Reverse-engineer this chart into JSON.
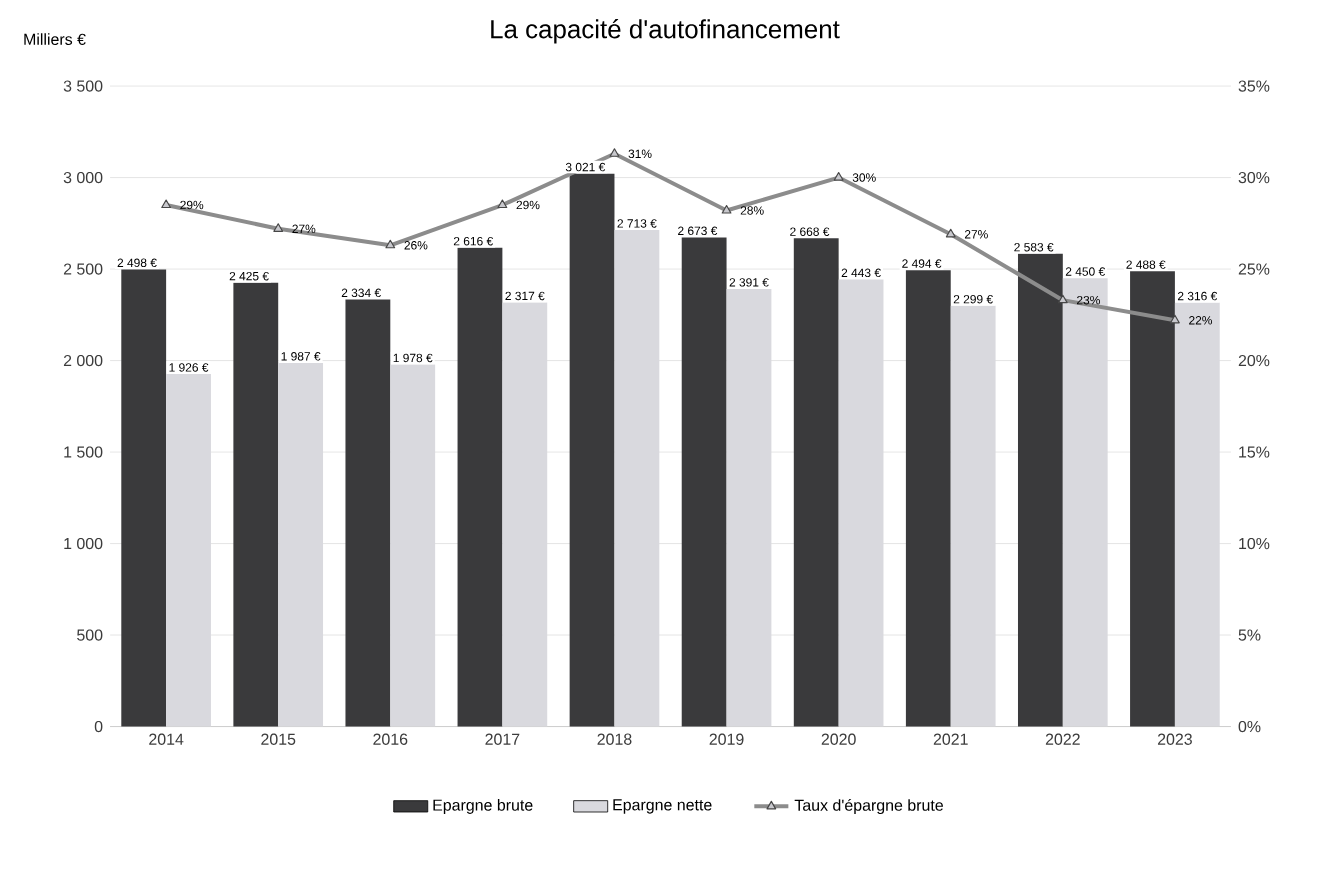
{
  "chart_data": {
    "type": "bar",
    "title": "La capacité d'autofinancement",
    "ylabel": "Milliers €",
    "categories": [
      "2014",
      "2015",
      "2016",
      "2017",
      "2018",
      "2019",
      "2020",
      "2021",
      "2022",
      "2023"
    ],
    "series": [
      {
        "name": "Epargne brute",
        "color": "#3a3a3c",
        "values": [
          2498,
          2425,
          2334,
          2616,
          3021,
          2673,
          2668,
          2494,
          2583,
          2488
        ],
        "value_labels": [
          "2 498 €",
          "2 425 €",
          "2 334 €",
          "2 616 €",
          "3 021 €",
          "2 673 €",
          "2 668 €",
          "2 494 €",
          "2 583 €",
          "2 488 €"
        ]
      },
      {
        "name": "Epargne nette",
        "color": "#d9d9de",
        "values": [
          1926,
          1987,
          1978,
          2317,
          2713,
          2391,
          2443,
          2299,
          2450,
          2316
        ],
        "value_labels": [
          "1 926 €",
          "1 987 €",
          "1 978 €",
          "2 317 €",
          "2 713 €",
          "2 391 €",
          "2 443 €",
          "2 299 €",
          "2 450 €",
          "2 316 €"
        ]
      },
      {
        "name": "Taux d'épargne brute",
        "type": "line",
        "axis": "y2",
        "marker": "triangle",
        "color": "#8c8c8c",
        "values": [
          28.5,
          27.2,
          26.3,
          28.5,
          31.3,
          28.2,
          30.0,
          26.9,
          23.3,
          22.2
        ],
        "value_labels": [
          "29%",
          "27%",
          "26%",
          "29%",
          "31%",
          "28%",
          "30%",
          "27%",
          "23%",
          "22%"
        ]
      }
    ],
    "ylim": [
      0,
      3500
    ],
    "yticks": [
      0,
      500,
      {
        "value": 1000,
        "label": "1 000"
      },
      {
        "value": 1500,
        "label": "1 500"
      },
      {
        "value": 2000,
        "label": "2 000"
      },
      {
        "value": 2500,
        "label": "2 500"
      },
      {
        "value": 3000,
        "label": "3 000"
      },
      {
        "value": 3500,
        "label": "3 500"
      }
    ],
    "y2lim": [
      0,
      35
    ],
    "y2ticks": [
      {
        "value": 0,
        "label": "0%"
      },
      {
        "value": 5,
        "label": "5%"
      },
      {
        "value": 10,
        "label": "10%"
      },
      {
        "value": 15,
        "label": "15%"
      },
      {
        "value": 20,
        "label": "20%"
      },
      {
        "value": 25,
        "label": "25%"
      },
      {
        "value": 30,
        "label": "30%"
      },
      {
        "value": 35,
        "label": "35%"
      }
    ],
    "grid": "y",
    "legend": "bottom"
  }
}
